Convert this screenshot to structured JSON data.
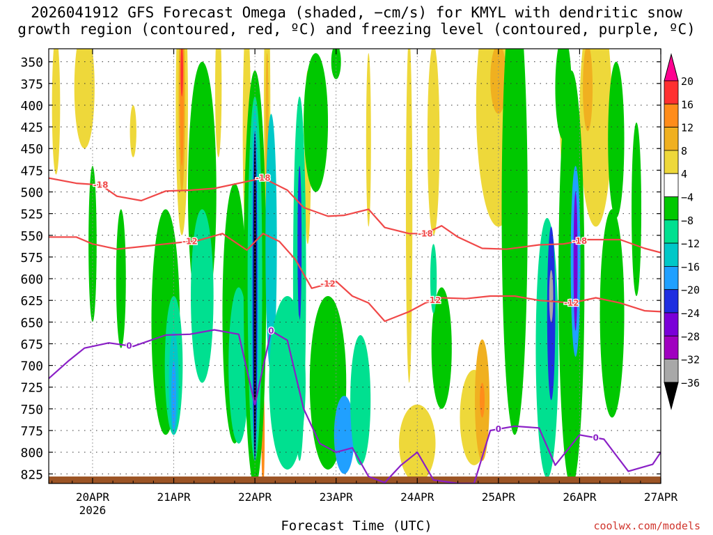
{
  "chart_data": {
    "type": "heatmap",
    "title_lines": [
      "2026041912 GFS Forecast Omega (shaded, −cm/s) for KMYL with dendritic snow",
      "growth region (contoured, red, ºC) and freezing level (contoured, purple, ºC)"
    ],
    "xlabel": "Forecast Time (UTC)",
    "credit": "coolwx.com/models",
    "x_ticks": [
      {
        "day": 20,
        "label": "20APR"
      },
      {
        "day": 21,
        "label": "21APR"
      },
      {
        "day": 22,
        "label": "22APR"
      },
      {
        "day": 23,
        "label": "23APR"
      },
      {
        "day": 24,
        "label": "24APR"
      },
      {
        "day": 25,
        "label": "25APR"
      },
      {
        "day": 26,
        "label": "26APR"
      },
      {
        "day": 27,
        "label": "27APR"
      }
    ],
    "x_year_label": "2026",
    "xlim_days": [
      19.46,
      27.0
    ],
    "y_ticks": [
      350,
      375,
      400,
      425,
      450,
      475,
      500,
      525,
      550,
      575,
      600,
      625,
      650,
      675,
      700,
      725,
      750,
      775,
      800,
      825
    ],
    "ylim_hpa": [
      335,
      836
    ],
    "colorbar": {
      "labels": [
        "20",
        "16",
        "12",
        "8",
        "4",
        "−4",
        "−8",
        "−12",
        "−16",
        "−20",
        "−24",
        "−28",
        "−32",
        "−36"
      ],
      "colors": [
        "#ff0090",
        "#ff3030",
        "#ff8c1a",
        "#f0b020",
        "#eed83a",
        "#ffffff",
        "#00c800",
        "#00e090",
        "#00c8c8",
        "#20a0ff",
        "#1e2ee0",
        "#7a00d8",
        "#a000c0",
        "#a8a8a8",
        "#000000"
      ]
    },
    "series": [
      {
        "name": "-18C isotherm",
        "color": "#f04848",
        "label": "-18",
        "points": [
          [
            19.46,
            484
          ],
          [
            19.8,
            490
          ],
          [
            20.1,
            492
          ],
          [
            20.3,
            505
          ],
          [
            20.6,
            510
          ],
          [
            20.9,
            499
          ],
          [
            21.2,
            498
          ],
          [
            21.5,
            496
          ],
          [
            21.9,
            488
          ],
          [
            22.1,
            484
          ],
          [
            22.4,
            498
          ],
          [
            22.6,
            518
          ],
          [
            22.9,
            528
          ],
          [
            23.1,
            527
          ],
          [
            23.4,
            520
          ],
          [
            23.6,
            541
          ],
          [
            23.9,
            548
          ],
          [
            24.1,
            548
          ],
          [
            24.3,
            539
          ],
          [
            24.5,
            552
          ],
          [
            24.8,
            565
          ],
          [
            25.1,
            566
          ],
          [
            25.5,
            561
          ],
          [
            25.8,
            560
          ],
          [
            26.1,
            555
          ],
          [
            26.5,
            555
          ],
          [
            26.8,
            565
          ],
          [
            27.0,
            570
          ]
        ],
        "label_days": [
          20.1,
          22.1,
          24.1,
          26.0
        ]
      },
      {
        "name": "-12C isotherm",
        "color": "#f04848",
        "label": "-12",
        "points": [
          [
            19.46,
            552
          ],
          [
            19.8,
            552
          ],
          [
            20.0,
            560
          ],
          [
            20.3,
            566
          ],
          [
            20.6,
            563
          ],
          [
            20.9,
            560
          ],
          [
            21.3,
            556
          ],
          [
            21.6,
            548
          ],
          [
            21.9,
            567
          ],
          [
            22.1,
            548
          ],
          [
            22.3,
            557
          ],
          [
            22.5,
            578
          ],
          [
            22.7,
            611
          ],
          [
            22.9,
            606
          ],
          [
            23.0,
            603
          ],
          [
            23.2,
            620
          ],
          [
            23.4,
            628
          ],
          [
            23.6,
            649
          ],
          [
            23.9,
            638
          ],
          [
            24.1,
            628
          ],
          [
            24.3,
            622
          ],
          [
            24.6,
            623
          ],
          [
            24.9,
            620
          ],
          [
            25.2,
            620
          ],
          [
            25.5,
            625
          ],
          [
            25.9,
            628
          ],
          [
            26.2,
            622
          ],
          [
            26.5,
            628
          ],
          [
            26.8,
            637
          ],
          [
            27.0,
            638
          ]
        ],
        "label_days": [
          21.2,
          22.9,
          24.2,
          25.9
        ]
      },
      {
        "name": "0C freezing level",
        "color": "#8a1fc6",
        "label": "0",
        "points": [
          [
            19.46,
            715
          ],
          [
            19.7,
            695
          ],
          [
            19.9,
            680
          ],
          [
            20.2,
            674
          ],
          [
            20.5,
            678
          ],
          [
            20.9,
            665
          ],
          [
            21.2,
            664
          ],
          [
            21.5,
            659
          ],
          [
            21.8,
            664
          ],
          [
            22.0,
            745
          ],
          [
            22.2,
            660
          ],
          [
            22.4,
            671
          ],
          [
            22.6,
            750
          ],
          [
            22.8,
            790
          ],
          [
            23.0,
            800
          ],
          [
            23.2,
            795
          ],
          [
            23.4,
            828
          ],
          [
            23.6,
            835
          ],
          [
            23.8,
            815
          ],
          [
            24.0,
            800
          ],
          [
            24.2,
            832
          ],
          [
            24.5,
            836
          ],
          [
            24.7,
            836
          ],
          [
            24.9,
            775
          ],
          [
            25.2,
            770
          ],
          [
            25.5,
            772
          ],
          [
            25.7,
            815
          ],
          [
            26.0,
            780
          ],
          [
            26.3,
            785
          ],
          [
            26.6,
            822
          ],
          [
            26.9,
            814
          ],
          [
            27.0,
            800
          ]
        ],
        "label_days": [
          20.45,
          22.2,
          25.0,
          26.2
        ]
      }
    ]
  }
}
